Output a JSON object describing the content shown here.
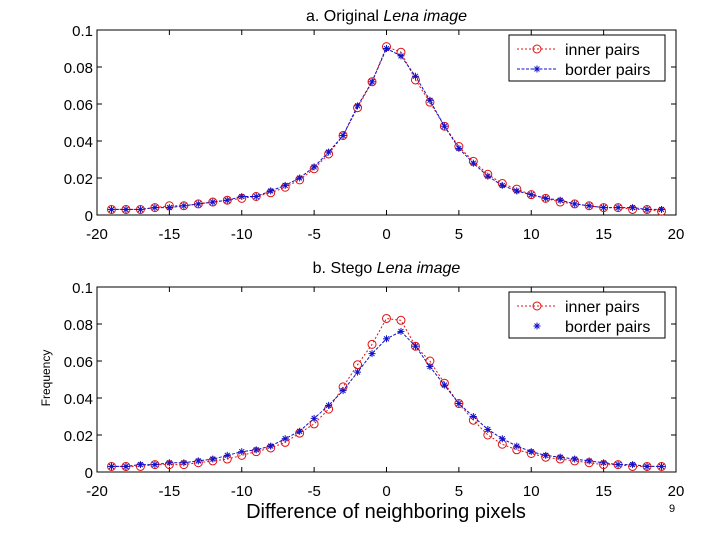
{
  "page_number": "9",
  "colors": {
    "inner": "#e01010",
    "border": "#1010c8",
    "axis": "#000000"
  },
  "chart_data": [
    {
      "type": "line",
      "title": "a. Original Lena image",
      "title_prefix": "a. Original ",
      "title_italic": "Lena image",
      "xlabel": "",
      "ylabel": "",
      "xlim": [
        -20,
        20
      ],
      "ylim": [
        0,
        0.1
      ],
      "xticks": [
        "-20",
        "-15",
        "-10",
        "-5",
        "0",
        "5",
        "10",
        "15",
        "20"
      ],
      "yticks": [
        "0",
        "0.02",
        "0.04",
        "0.06",
        "0.08",
        "0.1"
      ],
      "legend_position": "top-right",
      "x": [
        -19,
        -18,
        -17,
        -16,
        -15,
        -14,
        -13,
        -12,
        -11,
        -10,
        -9,
        -8,
        -7,
        -6,
        -5,
        -4,
        -3,
        -2,
        -1,
        0,
        1,
        2,
        3,
        4,
        5,
        6,
        7,
        8,
        9,
        10,
        11,
        12,
        13,
        14,
        15,
        16,
        17,
        18,
        19
      ],
      "series": [
        {
          "name": "inner pairs",
          "marker": "circle",
          "values": [
            0.003,
            0.003,
            0.003,
            0.004,
            0.005,
            0.005,
            0.006,
            0.007,
            0.008,
            0.009,
            0.01,
            0.012,
            0.015,
            0.019,
            0.025,
            0.033,
            0.043,
            0.058,
            0.072,
            0.091,
            0.088,
            0.073,
            0.061,
            0.048,
            0.037,
            0.029,
            0.022,
            0.017,
            0.014,
            0.011,
            0.009,
            0.007,
            0.006,
            0.005,
            0.004,
            0.004,
            0.003,
            0.003,
            0.002
          ]
        },
        {
          "name": "border pairs",
          "marker": "star",
          "values": [
            0.003,
            0.003,
            0.003,
            0.004,
            0.004,
            0.005,
            0.006,
            0.007,
            0.008,
            0.01,
            0.01,
            0.013,
            0.016,
            0.02,
            0.026,
            0.034,
            0.043,
            0.059,
            0.072,
            0.09,
            0.086,
            0.075,
            0.062,
            0.048,
            0.036,
            0.028,
            0.021,
            0.016,
            0.013,
            0.011,
            0.009,
            0.008,
            0.006,
            0.005,
            0.004,
            0.004,
            0.004,
            0.003,
            0.003
          ]
        }
      ]
    },
    {
      "type": "line",
      "title": "b. Stego Lena image",
      "title_prefix": "b. Stego ",
      "title_italic": "Lena image",
      "xlabel": "Difference of neighboring pixels",
      "ylabel": "Frequency",
      "xlim": [
        -20,
        20
      ],
      "ylim": [
        0,
        0.1
      ],
      "xticks": [
        "-20",
        "-15",
        "-10",
        "-5",
        "0",
        "5",
        "10",
        "15",
        "20"
      ],
      "yticks": [
        "0",
        "0.02",
        "0.04",
        "0.06",
        "0.08",
        "0.1"
      ],
      "legend_position": "top-right",
      "x": [
        -19,
        -18,
        -17,
        -16,
        -15,
        -14,
        -13,
        -12,
        -11,
        -10,
        -9,
        -8,
        -7,
        -6,
        -5,
        -4,
        -3,
        -2,
        -1,
        0,
        1,
        2,
        3,
        4,
        5,
        6,
        7,
        8,
        9,
        10,
        11,
        12,
        13,
        14,
        15,
        16,
        17,
        18,
        19
      ],
      "series": [
        {
          "name": "inner pairs",
          "marker": "circle",
          "values": [
            0.003,
            0.003,
            0.003,
            0.004,
            0.004,
            0.004,
            0.005,
            0.006,
            0.007,
            0.009,
            0.011,
            0.013,
            0.016,
            0.021,
            0.026,
            0.034,
            0.046,
            0.058,
            0.069,
            0.083,
            0.082,
            0.068,
            0.06,
            0.048,
            0.037,
            0.028,
            0.02,
            0.015,
            0.012,
            0.01,
            0.008,
            0.007,
            0.006,
            0.005,
            0.004,
            0.004,
            0.003,
            0.003,
            0.003
          ]
        },
        {
          "name": "border pairs",
          "marker": "star",
          "values": [
            0.003,
            0.003,
            0.004,
            0.004,
            0.005,
            0.005,
            0.006,
            0.007,
            0.009,
            0.011,
            0.012,
            0.014,
            0.018,
            0.022,
            0.029,
            0.036,
            0.044,
            0.054,
            0.064,
            0.072,
            0.076,
            0.068,
            0.057,
            0.047,
            0.037,
            0.03,
            0.023,
            0.018,
            0.014,
            0.011,
            0.009,
            0.008,
            0.007,
            0.006,
            0.005,
            0.004,
            0.004,
            0.003,
            0.003
          ]
        }
      ]
    }
  ]
}
